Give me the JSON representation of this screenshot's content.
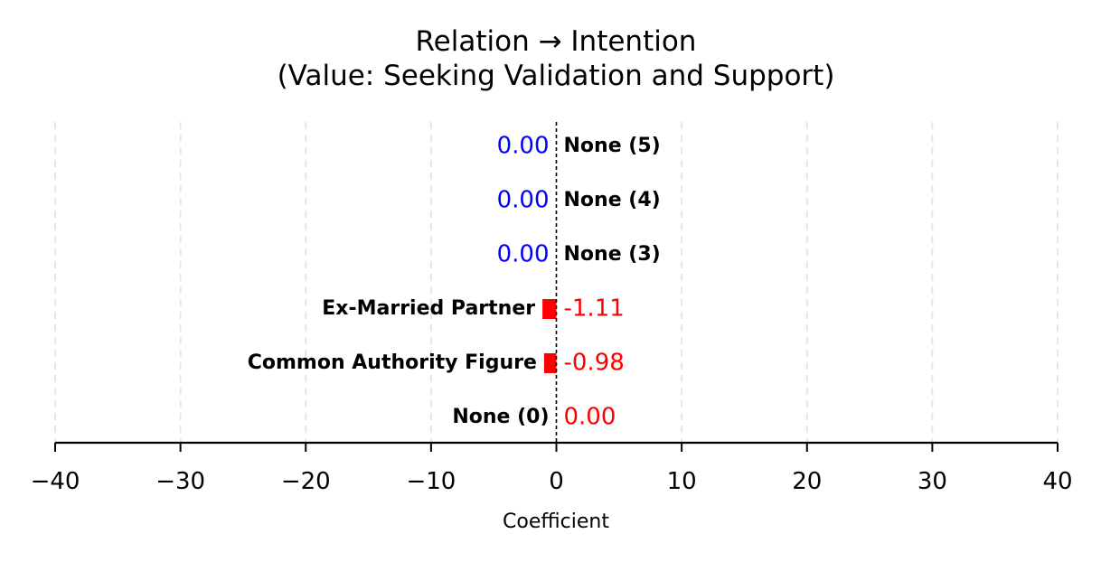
{
  "chart_data": {
    "type": "bar",
    "orientation": "horizontal",
    "title": "Relation → Intention",
    "subtitle": "(Value: Seeking Validation and Support)",
    "xlabel": "Coefficient",
    "ylabel": "",
    "xlim": [
      -40,
      40
    ],
    "x_ticks": [
      -40,
      -30,
      -20,
      -10,
      0,
      10,
      20,
      30,
      40
    ],
    "x_tick_labels": [
      "−40",
      "−30",
      "−20",
      "−10",
      "0",
      "10",
      "20",
      "30",
      "40"
    ],
    "grid": true,
    "zero_line": true,
    "categories": [
      "None (5)",
      "None (4)",
      "None (3)",
      "Ex-Married Partner",
      "Common Authority Figure",
      "None (0)"
    ],
    "values": [
      0.0,
      0.0,
      0.0,
      -1.11,
      -0.98,
      0.0
    ],
    "value_labels": [
      "0.00",
      "0.00",
      "0.00",
      "-1.11",
      "-0.98",
      "0.00"
    ],
    "category_label_side": [
      "right",
      "right",
      "right",
      "left",
      "left",
      "left"
    ],
    "value_label_side": [
      "left",
      "left",
      "left",
      "right",
      "right",
      "right"
    ],
    "value_label_colors": [
      "#0000ff",
      "#0000ff",
      "#0000ff",
      "#ff0000",
      "#ff0000",
      "#ff0000"
    ],
    "bar_colors": [
      "#0000ff",
      "#0000ff",
      "#0000ff",
      "#ff0000",
      "#ff0000",
      "#ff0000"
    ]
  }
}
